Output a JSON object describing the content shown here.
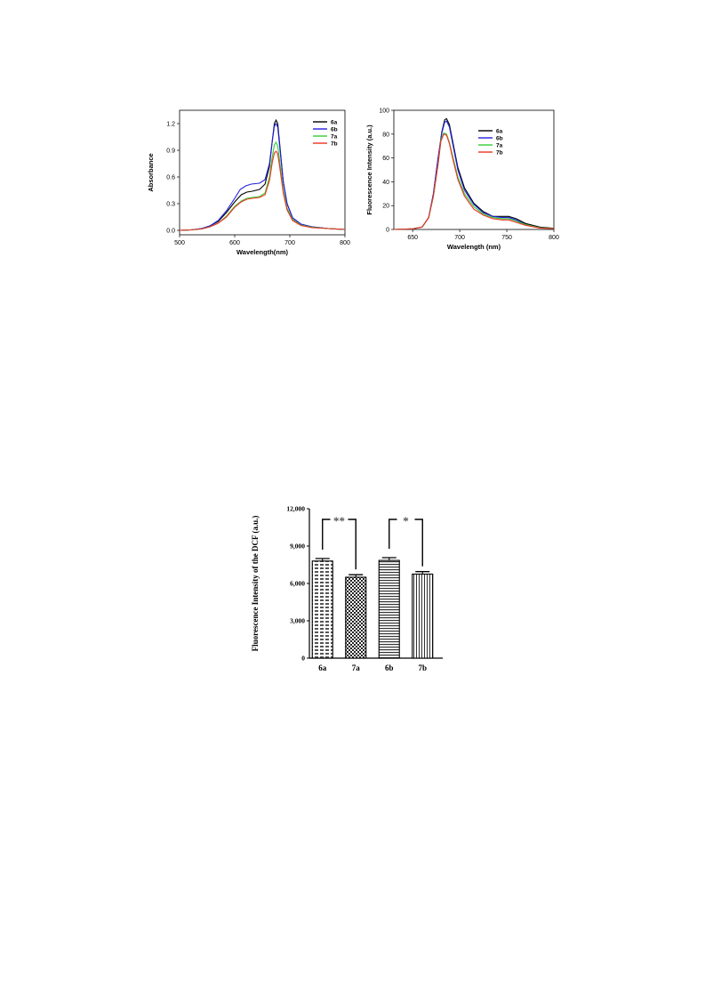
{
  "colors": {
    "s6a": "#000000",
    "s6b": "#2222dd",
    "s7a": "#33cc33",
    "s7b": "#ee3322"
  },
  "chart_data": [
    {
      "type": "line",
      "xlabel": "Wavelength(nm)",
      "ylabel": "Absorbance",
      "xlim": [
        500,
        800
      ],
      "ylim": [
        -0.05,
        1.35
      ],
      "xticks": [
        500,
        600,
        700,
        800
      ],
      "yticks": [
        "0.0",
        "0.3",
        "0.6",
        "0.9",
        "1.2"
      ],
      "legend_position": "top-right",
      "series": [
        {
          "name": "6a",
          "color": "#000000",
          "points": [
            [
              500,
              0.0
            ],
            [
              520,
              0.005
            ],
            [
              540,
              0.02
            ],
            [
              555,
              0.05
            ],
            [
              570,
              0.1
            ],
            [
              585,
              0.2
            ],
            [
              600,
              0.32
            ],
            [
              612,
              0.4
            ],
            [
              622,
              0.43
            ],
            [
              632,
              0.44
            ],
            [
              645,
              0.46
            ],
            [
              655,
              0.52
            ],
            [
              663,
              0.72
            ],
            [
              668,
              1.0
            ],
            [
              672,
              1.2
            ],
            [
              675,
              1.24
            ],
            [
              678,
              1.2
            ],
            [
              682,
              0.95
            ],
            [
              688,
              0.55
            ],
            [
              695,
              0.3
            ],
            [
              705,
              0.14
            ],
            [
              720,
              0.07
            ],
            [
              740,
              0.04
            ],
            [
              770,
              0.02
            ],
            [
              800,
              0.01
            ]
          ]
        },
        {
          "name": "6b",
          "color": "#2222dd",
          "points": [
            [
              500,
              0.0
            ],
            [
              520,
              0.005
            ],
            [
              540,
              0.02
            ],
            [
              555,
              0.05
            ],
            [
              570,
              0.11
            ],
            [
              585,
              0.22
            ],
            [
              600,
              0.36
            ],
            [
              610,
              0.46
            ],
            [
              620,
              0.5
            ],
            [
              630,
              0.52
            ],
            [
              645,
              0.53
            ],
            [
              655,
              0.57
            ],
            [
              663,
              0.75
            ],
            [
              668,
              1.0
            ],
            [
              672,
              1.17
            ],
            [
              675,
              1.2
            ],
            [
              678,
              1.16
            ],
            [
              682,
              0.92
            ],
            [
              688,
              0.55
            ],
            [
              695,
              0.3
            ],
            [
              705,
              0.14
            ],
            [
              720,
              0.07
            ],
            [
              740,
              0.04
            ],
            [
              770,
              0.02
            ],
            [
              800,
              0.01
            ]
          ]
        },
        {
          "name": "7a",
          "color": "#33cc33",
          "points": [
            [
              500,
              0.0
            ],
            [
              520,
              0.005
            ],
            [
              540,
              0.015
            ],
            [
              555,
              0.04
            ],
            [
              570,
              0.08
            ],
            [
              585,
              0.16
            ],
            [
              600,
              0.27
            ],
            [
              612,
              0.33
            ],
            [
              622,
              0.36
            ],
            [
              632,
              0.37
            ],
            [
              645,
              0.38
            ],
            [
              655,
              0.42
            ],
            [
              663,
              0.6
            ],
            [
              668,
              0.82
            ],
            [
              672,
              0.96
            ],
            [
              675,
              0.99
            ],
            [
              678,
              0.95
            ],
            [
              682,
              0.76
            ],
            [
              688,
              0.45
            ],
            [
              695,
              0.25
            ],
            [
              705,
              0.12
            ],
            [
              720,
              0.06
            ],
            [
              740,
              0.035
            ],
            [
              770,
              0.02
            ],
            [
              800,
              0.01
            ]
          ]
        },
        {
          "name": "7b",
          "color": "#ee3322",
          "points": [
            [
              500,
              0.0
            ],
            [
              520,
              0.005
            ],
            [
              540,
              0.015
            ],
            [
              555,
              0.04
            ],
            [
              570,
              0.08
            ],
            [
              585,
              0.15
            ],
            [
              600,
              0.26
            ],
            [
              612,
              0.32
            ],
            [
              622,
              0.35
            ],
            [
              632,
              0.36
            ],
            [
              645,
              0.37
            ],
            [
              655,
              0.4
            ],
            [
              663,
              0.56
            ],
            [
              668,
              0.76
            ],
            [
              672,
              0.87
            ],
            [
              675,
              0.89
            ],
            [
              678,
              0.86
            ],
            [
              682,
              0.7
            ],
            [
              688,
              0.42
            ],
            [
              695,
              0.23
            ],
            [
              705,
              0.11
            ],
            [
              720,
              0.055
            ],
            [
              740,
              0.03
            ],
            [
              770,
              0.02
            ],
            [
              800,
              0.01
            ]
          ]
        }
      ]
    },
    {
      "type": "line",
      "xlabel": "Wavelength (nm)",
      "ylabel": "Fluorescence Intensity (a.u.)",
      "xlim": [
        630,
        800
      ],
      "ylim": [
        0,
        100
      ],
      "xticks": [
        650,
        700,
        750,
        800
      ],
      "yticks": [
        0,
        20,
        40,
        60,
        80,
        100
      ],
      "legend_position": "top-right",
      "series": [
        {
          "name": "6a",
          "color": "#000000",
          "points": [
            [
              630,
              0
            ],
            [
              650,
              0.5
            ],
            [
              660,
              2
            ],
            [
              667,
              10
            ],
            [
              672,
              30
            ],
            [
              677,
              60
            ],
            [
              681,
              82
            ],
            [
              684,
              92
            ],
            [
              686,
              93
            ],
            [
              689,
              88
            ],
            [
              693,
              72
            ],
            [
              698,
              52
            ],
            [
              705,
              35
            ],
            [
              715,
              22
            ],
            [
              725,
              15
            ],
            [
              735,
              11
            ],
            [
              745,
              11
            ],
            [
              752,
              11
            ],
            [
              760,
              9
            ],
            [
              770,
              5
            ],
            [
              785,
              2
            ],
            [
              800,
              1
            ]
          ]
        },
        {
          "name": "6b",
          "color": "#2222dd",
          "points": [
            [
              630,
              0
            ],
            [
              650,
              0.5
            ],
            [
              660,
              2
            ],
            [
              667,
              10
            ],
            [
              672,
              30
            ],
            [
              677,
              60
            ],
            [
              681,
              81
            ],
            [
              684,
              90
            ],
            [
              686,
              91
            ],
            [
              689,
              86
            ],
            [
              693,
              70
            ],
            [
              698,
              50
            ],
            [
              705,
              33
            ],
            [
              715,
              21
            ],
            [
              725,
              14
            ],
            [
              735,
              11
            ],
            [
              745,
              10
            ],
            [
              752,
              10
            ],
            [
              760,
              8
            ],
            [
              770,
              4
            ],
            [
              785,
              1.5
            ],
            [
              800,
              0.8
            ]
          ]
        },
        {
          "name": "7a",
          "color": "#33cc33",
          "points": [
            [
              630,
              0
            ],
            [
              650,
              0.5
            ],
            [
              660,
              2
            ],
            [
              667,
              10
            ],
            [
              672,
              28
            ],
            [
              677,
              55
            ],
            [
              680,
              75
            ],
            [
              683,
              81
            ],
            [
              686,
              80
            ],
            [
              689,
              73
            ],
            [
              693,
              60
            ],
            [
              698,
              44
            ],
            [
              705,
              30
            ],
            [
              715,
              19
            ],
            [
              725,
              13
            ],
            [
              735,
              10
            ],
            [
              745,
              9
            ],
            [
              752,
              9
            ],
            [
              760,
              7
            ],
            [
              770,
              4
            ],
            [
              785,
              1.5
            ],
            [
              800,
              0.8
            ]
          ]
        },
        {
          "name": "7b",
          "color": "#ee3322",
          "points": [
            [
              630,
              0
            ],
            [
              650,
              0.5
            ],
            [
              660,
              2
            ],
            [
              667,
              10
            ],
            [
              672,
              28
            ],
            [
              677,
              55
            ],
            [
              680,
              74
            ],
            [
              683,
              80
            ],
            [
              686,
              79
            ],
            [
              689,
              72
            ],
            [
              693,
              58
            ],
            [
              698,
              42
            ],
            [
              705,
              28
            ],
            [
              715,
              17
            ],
            [
              725,
              12
            ],
            [
              735,
              9
            ],
            [
              745,
              8
            ],
            [
              752,
              8
            ],
            [
              760,
              6
            ],
            [
              770,
              3.5
            ],
            [
              785,
              1.2
            ],
            [
              800,
              0.6
            ]
          ]
        }
      ]
    },
    {
      "type": "bar",
      "ylabel": "Fluorescence Intensity of the DCF (a.u.)",
      "ylim": [
        0,
        12000
      ],
      "yticks": [
        "0",
        "3,000",
        "6,000",
        "9,000",
        "12,000"
      ],
      "categories": [
        "6a",
        "7a",
        "6b",
        "7b"
      ],
      "values": [
        7800,
        6500,
        7850,
        6750
      ],
      "errors": [
        200,
        200,
        220,
        200
      ],
      "patterns": [
        "horizontal-dashes",
        "checker",
        "horizontal-lines",
        "vertical-lines"
      ],
      "significance": [
        {
          "from": "6a",
          "to": "7a",
          "label": "**"
        },
        {
          "from": "6b",
          "to": "7b",
          "label": "*"
        }
      ]
    }
  ]
}
